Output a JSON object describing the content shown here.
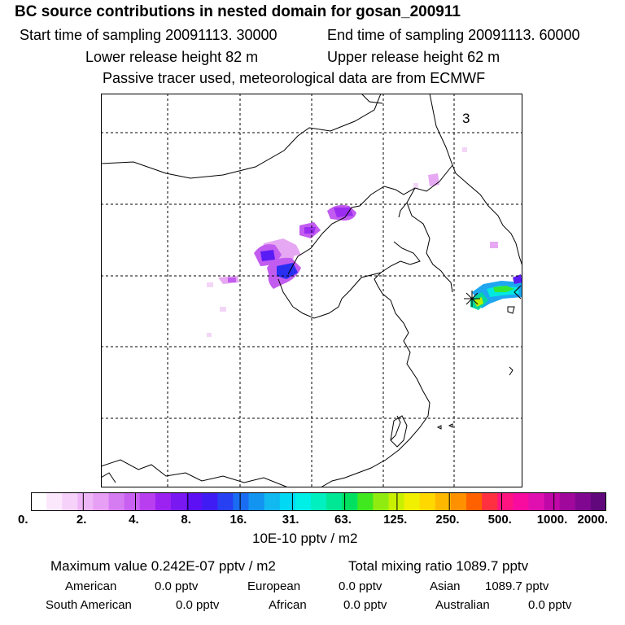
{
  "header": {
    "title": "BC  source contributions in nested domain for gosan_200911",
    "start_time": "Start time of sampling 20091113. 30000",
    "end_time": "End time of sampling 20091113. 60000",
    "lower_release": "Lower release height   82 m",
    "upper_release": "Upper release height   62 m",
    "tracer_note": "Passive tracer used, meteorological data are from ECMWF"
  },
  "map": {
    "panel_label": "3",
    "colors": {
      "pale_violet": "#f3d6f7",
      "light_violet": "#e6a8f2",
      "violet": "#c25cf0",
      "purple": "#9b2cf0",
      "blue_violet": "#5a1cf5",
      "deep_blue": "#2a2ff2",
      "cyan_blue": "#1ea6f0",
      "cyan": "#00e8e0",
      "teal": "#00d6a0",
      "green": "#33e833",
      "yellow_green": "#b8f000"
    }
  },
  "colorbar": {
    "colors": [
      "#ffffff",
      "#fce8fd",
      "#f6d2fa",
      "#eeb6f6",
      "#e79ff5",
      "#d57cf3",
      "#c860f1",
      "#b83ef0",
      "#9b22f0",
      "#7a18f2",
      "#5c10f3",
      "#3f1cf4",
      "#2640f2",
      "#1a6cf2",
      "#1294f0",
      "#12b8f0",
      "#00d8f4",
      "#00f0e8",
      "#00f0c0",
      "#00e896",
      "#00e060",
      "#40e820",
      "#90ec10",
      "#c8f000",
      "#f0f000",
      "#ffd800",
      "#ffb800",
      "#ff9000",
      "#ff6000",
      "#ff3040",
      "#ff1480",
      "#f80ca0",
      "#e010b0",
      "#c008a8",
      "#a0089c",
      "#800890",
      "#60087c"
    ],
    "ticks": [
      "0.",
      "2.",
      "4.",
      "8.",
      "16.",
      "31.",
      "63.",
      "125.",
      "250.",
      "500.",
      "1000.",
      "2000."
    ],
    "unit": "10E-10 pptv / m2"
  },
  "summary": {
    "max_value": "Maximum value  0.242E-07 pptv / m2",
    "total_mixing": "Total mixing ratio     1089.7 pptv",
    "regions": [
      {
        "name": "American",
        "value": "0.0 pptv"
      },
      {
        "name": "European",
        "value": "0.0 pptv"
      },
      {
        "name": "Asian",
        "value": "1089.7 pptv"
      },
      {
        "name": "South American",
        "value": "0.0 pptv"
      },
      {
        "name": "African",
        "value": "0.0 pptv"
      },
      {
        "name": "Australian",
        "value": "0.0 pptv"
      }
    ]
  }
}
